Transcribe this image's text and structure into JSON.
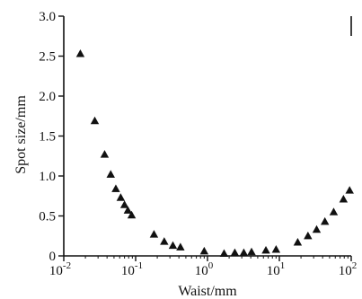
{
  "chart_data": {
    "type": "scatter",
    "xlabel": "Waist/mm",
    "ylabel": "Spot size/mm",
    "xscale": "log",
    "xlim": [
      0.01,
      100
    ],
    "ylim": [
      0,
      3.0
    ],
    "x_ticks": [
      {
        "value": 0.01,
        "base": "10",
        "exp": "-2"
      },
      {
        "value": 0.1,
        "base": "10",
        "exp": "-1"
      },
      {
        "value": 1,
        "base": "10",
        "exp": "0"
      },
      {
        "value": 10,
        "base": "10",
        "exp": "1"
      },
      {
        "value": 100,
        "base": "10",
        "exp": "2"
      }
    ],
    "y_ticks": [
      {
        "value": 0,
        "label": "0"
      },
      {
        "value": 0.5,
        "label": "0.5"
      },
      {
        "value": 1.0,
        "label": "1.0"
      },
      {
        "value": 1.5,
        "label": "1.5"
      },
      {
        "value": 2.0,
        "label": "2.0"
      },
      {
        "value": 2.5,
        "label": "2.5"
      },
      {
        "value": 3.0,
        "label": "3.0"
      }
    ],
    "grid": false,
    "marker": "triangle",
    "marker_color": "#111111",
    "points": [
      {
        "x": 0.017,
        "y": 2.53
      },
      {
        "x": 0.027,
        "y": 1.69
      },
      {
        "x": 0.037,
        "y": 1.27
      },
      {
        "x": 0.045,
        "y": 1.02
      },
      {
        "x": 0.053,
        "y": 0.84
      },
      {
        "x": 0.062,
        "y": 0.73
      },
      {
        "x": 0.07,
        "y": 0.64
      },
      {
        "x": 0.078,
        "y": 0.57
      },
      {
        "x": 0.088,
        "y": 0.51
      },
      {
        "x": 0.18,
        "y": 0.27
      },
      {
        "x": 0.25,
        "y": 0.18
      },
      {
        "x": 0.33,
        "y": 0.13
      },
      {
        "x": 0.42,
        "y": 0.11
      },
      {
        "x": 0.9,
        "y": 0.06
      },
      {
        "x": 1.7,
        "y": 0.03
      },
      {
        "x": 2.4,
        "y": 0.04
      },
      {
        "x": 3.2,
        "y": 0.04
      },
      {
        "x": 4.1,
        "y": 0.05
      },
      {
        "x": 6.5,
        "y": 0.07
      },
      {
        "x": 9.0,
        "y": 0.08
      },
      {
        "x": 18,
        "y": 0.17
      },
      {
        "x": 25,
        "y": 0.25
      },
      {
        "x": 33,
        "y": 0.33
      },
      {
        "x": 43,
        "y": 0.43
      },
      {
        "x": 57,
        "y": 0.55
      },
      {
        "x": 78,
        "y": 0.71
      },
      {
        "x": 95,
        "y": 0.82
      }
    ]
  }
}
